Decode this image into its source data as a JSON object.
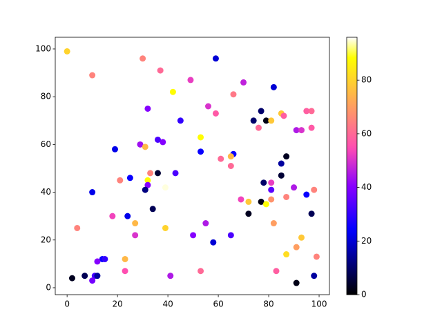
{
  "chart_data": {
    "type": "scatter",
    "x": [
      0,
      10,
      30,
      37,
      59,
      49,
      70,
      42,
      82,
      66,
      32,
      56,
      59,
      77,
      95,
      97,
      45,
      74,
      79,
      81,
      85,
      86,
      76,
      91,
      93,
      97,
      53,
      36,
      38,
      29,
      31,
      19,
      53,
      66,
      61,
      65,
      87,
      85,
      65,
      33,
      36,
      43,
      25,
      21,
      32,
      32,
      31,
      39,
      78,
      81,
      81,
      85,
      90,
      95,
      98,
      10,
      87,
      69,
      72,
      77,
      81,
      79,
      34,
      72,
      97,
      18,
      24,
      55,
      82,
      27,
      4,
      39,
      50,
      65,
      27,
      93,
      58,
      91,
      87,
      99,
      78,
      14,
      15,
      23,
      12,
      23,
      53,
      83,
      7,
      11,
      12,
      41,
      98,
      2,
      10,
      91
    ],
    "y": [
      99,
      89,
      96,
      91,
      96,
      87,
      86,
      82,
      84,
      81,
      75,
      76,
      73,
      74,
      74,
      74,
      70,
      70,
      70,
      70,
      73,
      72,
      67,
      66,
      66,
      67,
      63,
      62,
      61,
      60,
      59,
      58,
      57,
      56,
      54,
      55,
      55,
      52,
      51,
      48,
      48,
      48,
      46,
      45,
      45,
      43,
      41,
      42,
      44,
      44,
      41,
      47,
      42,
      39,
      41,
      40,
      38,
      37,
      36,
      36,
      37,
      35,
      33,
      31,
      31,
      30,
      30,
      27,
      27,
      27,
      25,
      25,
      22,
      22,
      22,
      21,
      19,
      17,
      14,
      13,
      12,
      12,
      12,
      12,
      11,
      7,
      7,
      7,
      5,
      5,
      5,
      5,
      5,
      4,
      3,
      2
    ],
    "c": [
      80,
      65,
      65,
      60,
      20,
      52,
      47,
      88,
      20,
      63,
      40,
      50,
      57,
      10,
      58,
      60,
      30,
      10,
      2,
      78,
      78,
      58,
      60,
      45,
      50,
      57,
      88,
      33,
      40,
      43,
      75,
      22,
      25,
      25,
      60,
      75,
      3,
      15,
      60,
      65,
      5,
      33,
      25,
      65,
      88,
      40,
      12,
      95,
      10,
      52,
      35,
      5,
      45,
      25,
      65,
      22,
      65,
      53,
      78,
      2,
      68,
      88,
      8,
      3,
      8,
      53,
      22,
      45,
      70,
      75,
      65,
      80,
      40,
      33,
      50,
      78,
      20,
      70,
      82,
      65,
      98,
      25,
      30,
      75,
      40,
      55,
      60,
      58,
      8,
      32,
      15,
      45,
      15,
      3,
      38,
      2
    ],
    "cmap": "gnuplot2",
    "clim": [
      0,
      96
    ],
    "cticks": [
      0,
      20,
      40,
      60,
      80
    ],
    "xlim": [
      -4.7,
      104.1
    ],
    "ylim": [
      -2.9,
      104.9
    ],
    "xticks": [
      0,
      20,
      40,
      60,
      80,
      100
    ],
    "yticks": [
      0,
      20,
      40,
      60,
      80,
      100
    ]
  }
}
